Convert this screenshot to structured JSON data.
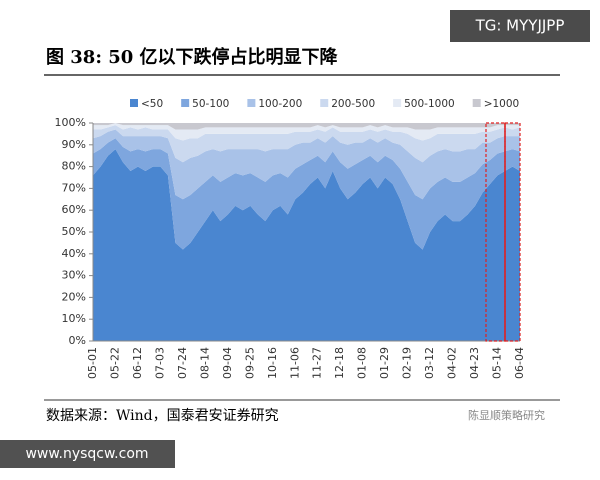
{
  "chart_data": {
    "type": "area",
    "stacked": true,
    "title": "图 38:  50 亿以下跌停占比明显下降",
    "source": "数据来源：Wind，国泰君安证券研究",
    "legend": "top",
    "categories": [
      "05-01",
      null,
      null,
      "05-22",
      null,
      null,
      "06-12",
      null,
      null,
      "07-03",
      null,
      null,
      "07-24",
      null,
      null,
      "08-14",
      null,
      null,
      "09-04",
      null,
      null,
      "09-25",
      null,
      null,
      "10-16",
      null,
      null,
      "11-06",
      null,
      null,
      "11-27",
      null,
      null,
      "12-18",
      null,
      null,
      "01-08",
      null,
      null,
      "01-29",
      null,
      null,
      "02-19",
      null,
      null,
      "03-12",
      null,
      null,
      "04-02",
      null,
      null,
      "04-23",
      null,
      null,
      "05-14",
      null,
      null,
      "06-04"
    ],
    "series": [
      {
        "name": "<50",
        "color": "#4a86d0",
        "values": [
          76,
          80,
          85,
          88,
          82,
          78,
          80,
          78,
          80,
          80,
          76,
          45,
          42,
          45,
          50,
          55,
          60,
          55,
          58,
          62,
          60,
          62,
          58,
          55,
          60,
          62,
          58,
          65,
          68,
          72,
          75,
          70,
          78,
          70,
          65,
          68,
          72,
          75,
          70,
          75,
          72,
          65,
          55,
          45,
          42,
          50,
          55,
          58,
          55,
          55,
          58,
          62,
          68,
          72,
          76,
          78,
          80,
          78
        ]
      },
      {
        "name": "50-100",
        "color": "#7ea6de",
        "values": [
          10,
          8,
          6,
          5,
          7,
          9,
          8,
          9,
          8,
          8,
          10,
          22,
          23,
          22,
          20,
          18,
          16,
          18,
          17,
          15,
          16,
          15,
          17,
          18,
          16,
          15,
          17,
          14,
          13,
          11,
          10,
          12,
          9,
          12,
          14,
          13,
          11,
          10,
          12,
          10,
          11,
          14,
          18,
          22,
          23,
          20,
          18,
          17,
          18,
          18,
          17,
          15,
          13,
          11,
          10,
          9,
          8,
          9
        ]
      },
      {
        "name": "100-200",
        "color": "#a9c2e8",
        "values": [
          7,
          6,
          5,
          4,
          5,
          7,
          6,
          7,
          6,
          6,
          7,
          17,
          17,
          17,
          15,
          14,
          12,
          14,
          13,
          11,
          12,
          11,
          13,
          14,
          12,
          11,
          13,
          11,
          10,
          8,
          8,
          9,
          7,
          9,
          11,
          10,
          8,
          8,
          9,
          8,
          8,
          11,
          14,
          17,
          17,
          15,
          14,
          13,
          14,
          14,
          13,
          11,
          10,
          8,
          7,
          7,
          6,
          7
        ]
      },
      {
        "name": "200-500",
        "color": "#cbd9ef",
        "values": [
          4,
          3,
          2,
          2,
          3,
          4,
          3,
          4,
          3,
          3,
          4,
          9,
          10,
          9,
          8,
          8,
          7,
          8,
          7,
          7,
          7,
          7,
          7,
          8,
          7,
          7,
          7,
          6,
          5,
          5,
          4,
          5,
          4,
          5,
          6,
          5,
          5,
          4,
          5,
          4,
          5,
          6,
          8,
          9,
          10,
          8,
          8,
          7,
          8,
          8,
          7,
          7,
          5,
          5,
          4,
          4,
          3,
          4
        ]
      },
      {
        "name": "500-1000",
        "color": "#e4eaf4",
        "values": [
          2,
          2,
          1,
          1,
          2,
          1,
          2,
          1,
          2,
          2,
          2,
          4,
          5,
          4,
          4,
          3,
          3,
          3,
          3,
          3,
          3,
          3,
          3,
          3,
          3,
          3,
          3,
          2,
          2,
          2,
          2,
          2,
          1,
          2,
          2,
          2,
          2,
          2,
          2,
          2,
          2,
          2,
          3,
          4,
          5,
          4,
          3,
          3,
          3,
          3,
          3,
          3,
          2,
          2,
          2,
          1,
          2,
          1
        ]
      },
      {
        "name": ">1000",
        "color": "#c8c8cf",
        "values": [
          1,
          1,
          1,
          0,
          1,
          1,
          1,
          1,
          1,
          1,
          1,
          3,
          3,
          3,
          3,
          2,
          2,
          2,
          2,
          2,
          2,
          2,
          2,
          2,
          2,
          2,
          2,
          2,
          2,
          2,
          1,
          2,
          1,
          2,
          2,
          2,
          2,
          1,
          2,
          1,
          2,
          2,
          2,
          3,
          3,
          3,
          2,
          2,
          2,
          2,
          2,
          2,
          2,
          2,
          1,
          1,
          1,
          1
        ]
      }
    ],
    "ylim": [
      0,
      100
    ],
    "yticks": [
      {
        "value": 0,
        "label": "0%"
      },
      {
        "value": 10,
        "label": "10%"
      },
      {
        "value": 20,
        "label": "20%"
      },
      {
        "value": 30,
        "label": "30%"
      },
      {
        "value": 40,
        "label": "40%"
      },
      {
        "value": 50,
        "label": "50%"
      },
      {
        "value": 60,
        "label": "60%"
      },
      {
        "value": 70,
        "label": "70%"
      },
      {
        "value": 80,
        "label": "80%"
      },
      {
        "value": 90,
        "label": "90%"
      },
      {
        "value": 100,
        "label": "100%"
      }
    ],
    "grid": false
  },
  "watermarks": {
    "top": "TG: MYYJJPP",
    "bottom_left": "www.nysqcw.com",
    "bottom_right": "陈显顺策略研究"
  }
}
